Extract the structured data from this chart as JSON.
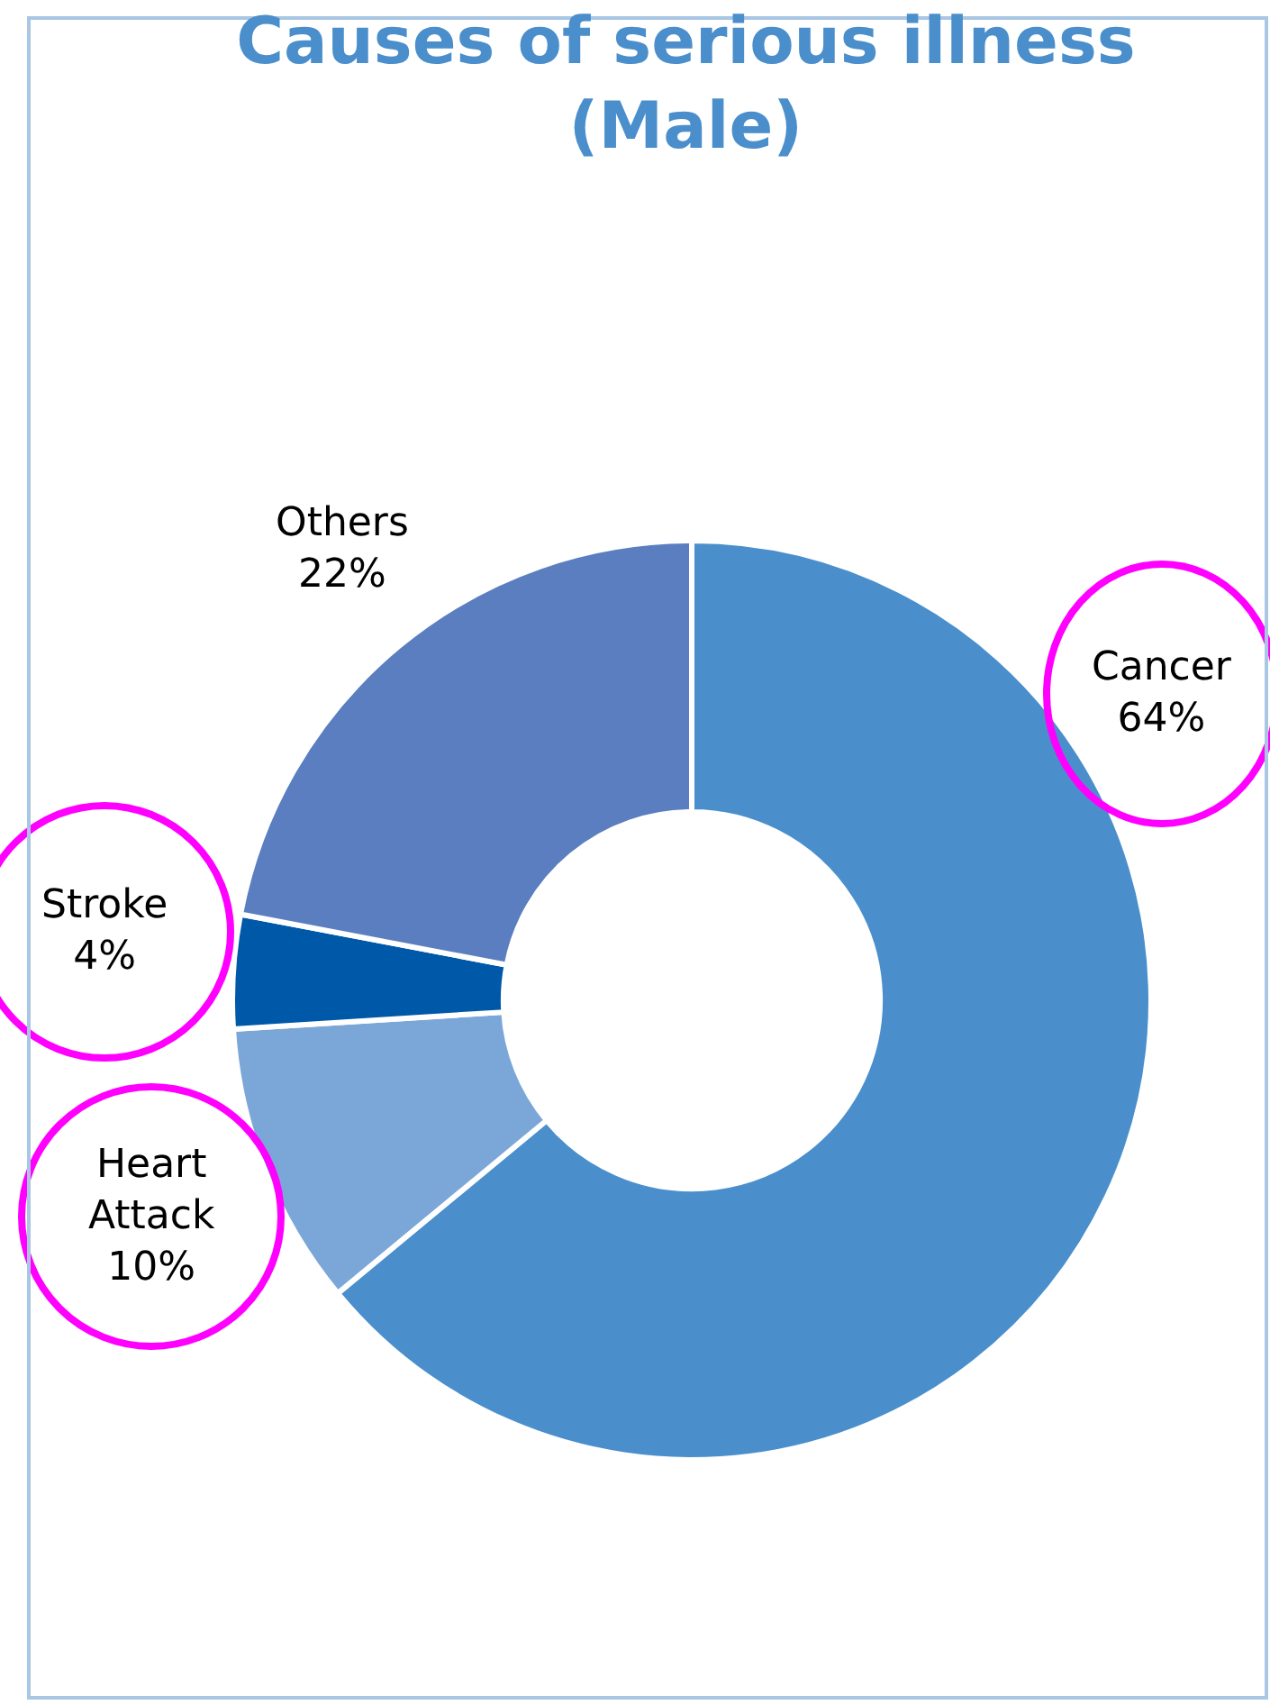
{
  "chart_data": {
    "type": "donut",
    "title": "Causes of serious illness\n(Male)",
    "categories": [
      "Cancer",
      "Heart Attack",
      "Stroke",
      "Others"
    ],
    "values": [
      64,
      10,
      4,
      22
    ],
    "colors": [
      "#4a8fcc",
      "#7ba7d8",
      "#0058a8",
      "#5a7ebf"
    ],
    "value_labels": [
      "64%",
      "10%",
      "4%",
      "22%"
    ],
    "legend": false
  }
}
